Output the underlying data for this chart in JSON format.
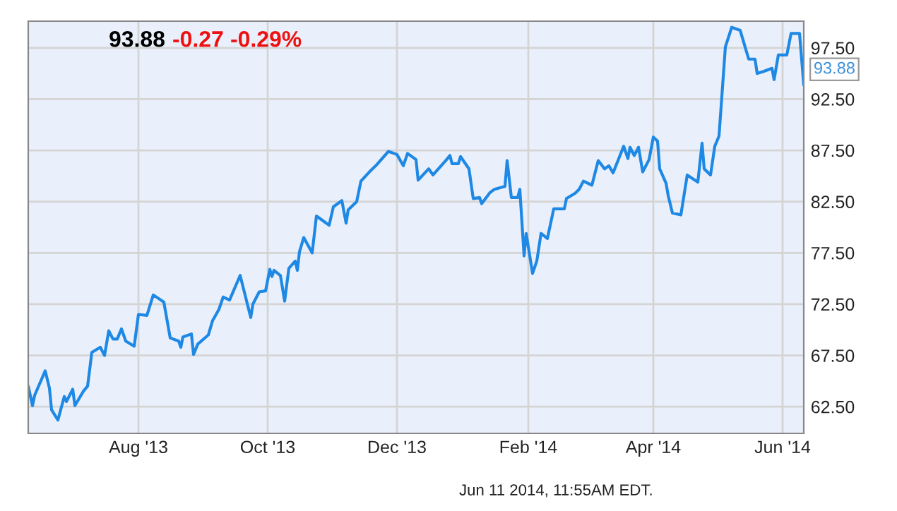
{
  "chart_data": {
    "type": "line",
    "title": "93.88",
    "x": [
      "2013-06-10",
      "2013-06-12",
      "2013-06-13",
      "2013-06-18",
      "2013-06-20",
      "2013-06-21",
      "2013-06-24",
      "2013-06-27",
      "2013-06-28",
      "2013-07-01",
      "2013-07-02",
      "2013-07-06",
      "2013-07-08",
      "2013-07-10",
      "2013-07-14",
      "2013-07-16",
      "2013-07-18",
      "2013-07-20",
      "2013-07-22",
      "2013-07-24",
      "2013-07-26",
      "2013-07-30",
      "2013-08-01",
      "2013-08-05",
      "2013-08-08",
      "2013-08-13",
      "2013-08-16",
      "2013-08-20",
      "2013-08-21",
      "2013-08-22",
      "2013-08-26",
      "2013-08-27",
      "2013-08-29",
      "2013-09-03",
      "2013-09-05",
      "2013-09-08",
      "2013-09-10",
      "2013-09-13",
      "2013-09-18",
      "2013-09-23",
      "2013-09-24",
      "2013-09-27",
      "2013-09-30",
      "2013-10-02",
      "2013-10-03",
      "2013-10-04",
      "2013-10-07",
      "2013-10-09",
      "2013-10-11",
      "2013-10-14",
      "2013-10-15",
      "2013-10-16",
      "2013-10-18",
      "2013-10-22",
      "2013-10-24",
      "2013-10-28",
      "2013-10-30",
      "2013-11-01",
      "2013-11-05",
      "2013-11-07",
      "2013-11-08",
      "2013-11-12",
      "2013-11-14",
      "2013-11-18",
      "2013-11-21",
      "2013-11-27",
      "2013-12-01",
      "2013-12-04",
      "2013-12-06",
      "2013-12-10",
      "2013-12-11",
      "2013-12-16",
      "2013-12-18",
      "2013-12-24",
      "2013-12-26",
      "2013-12-27",
      "2013-12-30",
      "2013-12-31",
      "2014-01-04",
      "2014-01-06",
      "2014-01-09",
      "2014-01-10",
      "2014-01-14",
      "2014-01-16",
      "2014-01-21",
      "2014-01-22",
      "2014-01-24",
      "2014-01-27",
      "2014-01-28",
      "2014-01-30",
      "2014-01-31",
      "2014-02-03",
      "2014-02-05",
      "2014-02-07",
      "2014-02-10",
      "2014-02-13",
      "2014-02-18",
      "2014-02-19",
      "2014-02-23",
      "2014-02-25",
      "2014-02-27",
      "2014-03-03",
      "2014-03-06",
      "2014-03-09",
      "2014-03-11",
      "2014-03-13",
      "2014-03-18",
      "2014-03-20",
      "2014-03-21",
      "2014-03-23",
      "2014-03-25",
      "2014-03-27",
      "2014-03-30",
      "2014-04-01",
      "2014-04-03",
      "2014-04-04",
      "2014-04-07",
      "2014-04-08",
      "2014-04-10",
      "2014-04-14",
      "2014-04-17",
      "2014-04-22",
      "2014-04-24",
      "2014-04-25",
      "2014-04-28",
      "2014-04-30",
      "2014-05-02",
      "2014-05-05",
      "2014-05-08",
      "2014-05-12",
      "2014-05-14",
      "2014-05-16",
      "2014-05-19",
      "2014-05-20",
      "2014-05-23",
      "2014-05-27",
      "2014-05-28",
      "2014-05-30",
      "2014-06-03",
      "2014-06-05",
      "2014-06-09",
      "2014-06-11"
    ],
    "series": [
      {
        "color": "#1e88e5",
        "values": [
          64.5,
          62.6,
          63.6,
          66.0,
          64.3,
          62.2,
          61.2,
          63.5,
          63.0,
          64.2,
          62.6,
          64.0,
          64.5,
          67.8,
          68.3,
          67.5,
          69.9,
          69.1,
          69.1,
          70.1,
          68.9,
          68.4,
          71.5,
          71.4,
          73.4,
          72.7,
          69.2,
          68.9,
          68.3,
          69.3,
          69.6,
          67.6,
          68.6,
          69.5,
          70.9,
          72.0,
          73.2,
          72.9,
          75.3,
          71.2,
          72.5,
          73.7,
          73.8,
          75.9,
          75.2,
          75.8,
          75.3,
          72.8,
          76.0,
          76.7,
          75.8,
          77.6,
          79.0,
          77.5,
          81.1,
          80.5,
          80.2,
          82.0,
          82.6,
          80.4,
          81.7,
          82.5,
          84.5,
          85.4,
          86.0,
          87.4,
          87.1,
          86.0,
          87.2,
          86.6,
          84.6,
          85.7,
          85.1,
          86.5,
          87.0,
          86.2,
          86.2,
          86.9,
          85.7,
          82.8,
          82.9,
          82.3,
          83.4,
          83.7,
          84.0,
          86.5,
          82.9,
          82.9,
          83.7,
          77.2,
          79.4,
          75.5,
          76.7,
          79.4,
          78.9,
          81.8,
          81.8,
          82.8,
          83.3,
          83.7,
          84.5,
          84.1,
          86.5,
          85.7,
          86.0,
          85.3,
          87.9,
          86.7,
          87.8,
          87.0,
          87.8,
          85.4,
          86.6,
          88.8,
          88.4,
          85.7,
          84.3,
          83.1,
          81.4,
          81.2,
          85.1,
          84.4,
          88.2,
          85.7,
          85.1,
          87.9,
          88.9,
          97.6,
          99.5,
          99.2,
          97.8,
          96.4,
          96.4,
          95.0,
          95.2,
          95.5,
          94.4,
          96.8,
          96.8,
          98.9,
          98.9,
          93.88
        ]
      }
    ],
    "xlim": [
      "2013-06-10",
      "2014-06-11"
    ],
    "xticks": [
      {
        "value": "2013-08-01",
        "label": "Aug '13"
      },
      {
        "value": "2013-10-01",
        "label": "Oct '13"
      },
      {
        "value": "2013-12-01",
        "label": "Dec '13"
      },
      {
        "value": "2014-02-01",
        "label": "Feb '14"
      },
      {
        "value": "2014-04-01",
        "label": "Apr '14"
      },
      {
        "value": "2014-06-01",
        "label": "Jun '14"
      }
    ],
    "ylim": [
      59.9,
      100.1
    ],
    "yticks": [
      {
        "value": 62.5,
        "label": "62.50"
      },
      {
        "value": 67.5,
        "label": "67.50"
      },
      {
        "value": 72.5,
        "label": "72.50"
      },
      {
        "value": 77.5,
        "label": "77.50"
      },
      {
        "value": 82.5,
        "label": "82.50"
      },
      {
        "value": 87.5,
        "label": "87.50"
      },
      {
        "value": 92.5,
        "label": "92.50"
      },
      {
        "value": 97.5,
        "label": "97.50"
      }
    ],
    "annotations": [
      "-0.27",
      "-0.29%",
      {
        "text": "93.88",
        "x": "2014-06-11",
        "y": 93.88
      },
      "Jun 11 2014, 11:55AM EDT."
    ],
    "grid": true,
    "marker": "none",
    "line_style": "solid"
  }
}
